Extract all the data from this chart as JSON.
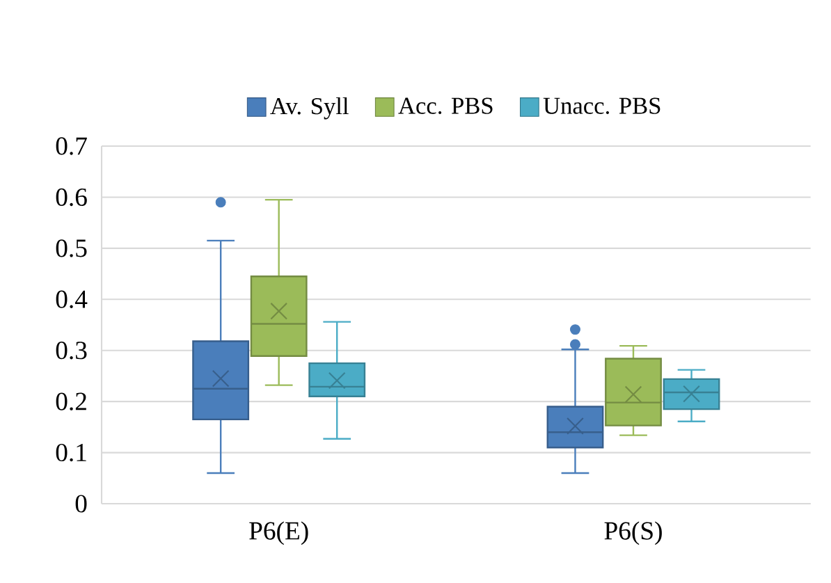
{
  "chart_data": {
    "type": "box",
    "categories": [
      "P6(E)",
      "P6(S)"
    ],
    "series": [
      {
        "name": "Av. Syll",
        "color": "#4a7ebb",
        "boxes": [
          {
            "low": 0.06,
            "q1": 0.165,
            "median": 0.225,
            "q3": 0.318,
            "high": 0.515,
            "mean": 0.245,
            "outliers": [
              0.59
            ]
          },
          {
            "low": 0.06,
            "q1": 0.11,
            "median": 0.14,
            "q3": 0.19,
            "high": 0.302,
            "mean": 0.152,
            "outliers": [
              0.312,
              0.341
            ]
          }
        ]
      },
      {
        "name": "Acc. PBS",
        "color": "#9bbb59",
        "boxes": [
          {
            "low": 0.232,
            "q1": 0.289,
            "median": 0.352,
            "q3": 0.445,
            "high": 0.595,
            "mean": 0.377
          },
          {
            "low": 0.134,
            "q1": 0.153,
            "median": 0.198,
            "q3": 0.284,
            "high": 0.309,
            "mean": 0.214
          }
        ]
      },
      {
        "name": "Unacc. PBS",
        "color": "#4bacc6",
        "boxes": [
          {
            "low": 0.127,
            "q1": 0.21,
            "median": 0.229,
            "q3": 0.275,
            "high": 0.356,
            "mean": 0.241
          },
          {
            "low": 0.161,
            "q1": 0.185,
            "median": 0.218,
            "q3": 0.244,
            "high": 0.262,
            "mean": 0.215
          }
        ]
      }
    ],
    "ylim": [
      0,
      0.7
    ],
    "yticks": [
      0,
      0.1,
      0.2,
      0.3,
      0.4,
      0.5,
      0.6,
      0.7
    ],
    "grid": "y",
    "legend": "top",
    "marker": "circle"
  }
}
